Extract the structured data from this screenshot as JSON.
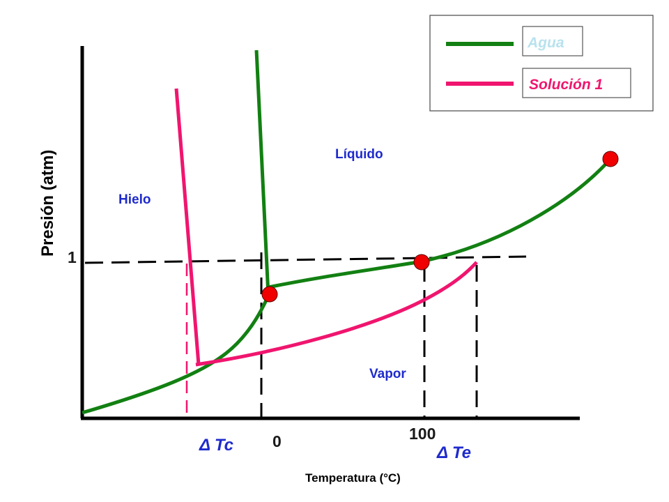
{
  "diagram": {
    "y_axis_title": "Presión (atm)",
    "x_axis_title": "Temperatura (°C)",
    "pressure_tick": "1",
    "temperature_ticks": [
      "0",
      "100"
    ],
    "regions": {
      "liquid": "Líquido",
      "ice": "Hielo",
      "vapor": "Vapor"
    },
    "delta_labels": {
      "freezing": "Δ Tc",
      "boiling": "Δ Te"
    },
    "legend": [
      {
        "label": "Agua",
        "color": "#128012"
      },
      {
        "label": "Solución 1",
        "color": "#f0156e"
      }
    ],
    "colors": {
      "water": "#128012",
      "solution": "#f0156e",
      "point": "#f00000",
      "region_text": "#1f2bcc"
    }
  }
}
